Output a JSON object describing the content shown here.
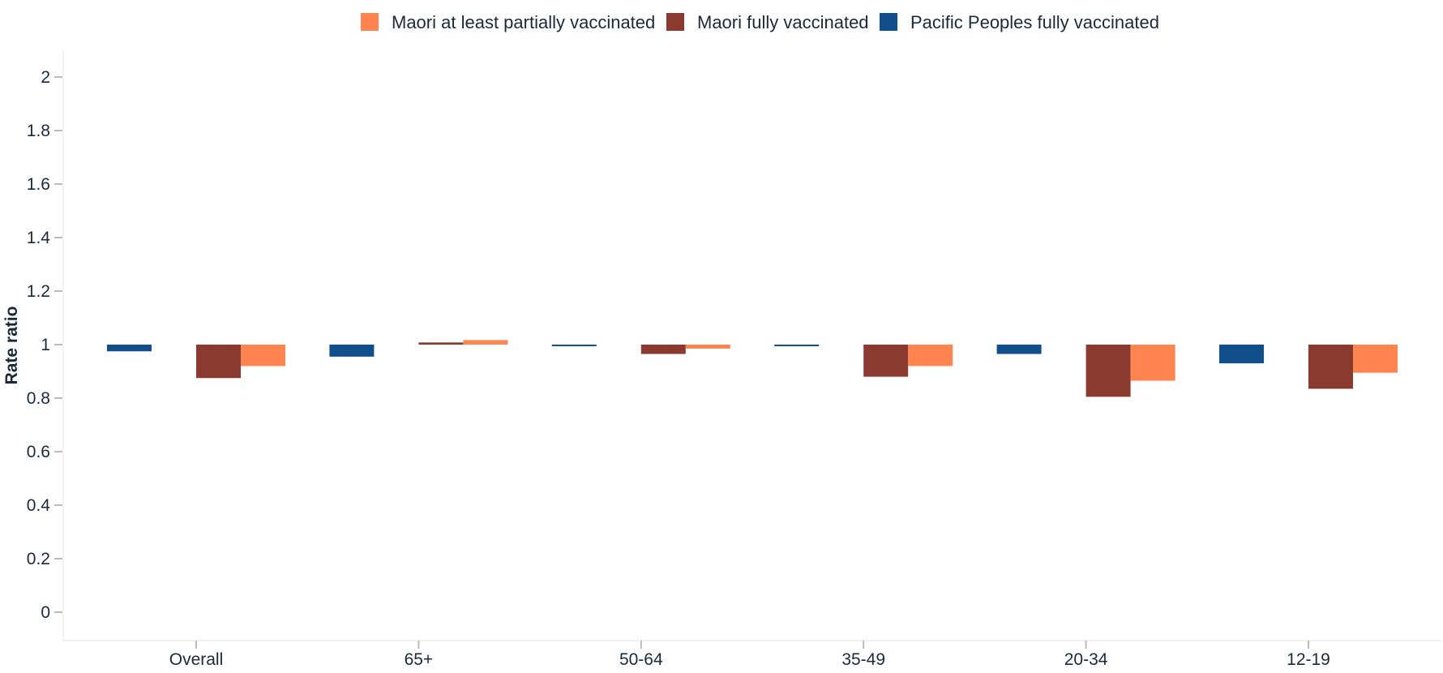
{
  "chart_data": {
    "type": "bar",
    "categories": [
      "Overall",
      "65+",
      "50-64",
      "35-49",
      "20-34",
      "12-19"
    ],
    "baseline": 1,
    "ylabel": "Rate ratio",
    "xlabel": "",
    "ylim": [
      -0.1,
      2.1
    ],
    "yticks": [
      0,
      0.2,
      0.4,
      0.6,
      0.8,
      1,
      1.2,
      1.4,
      1.6,
      1.8,
      2
    ],
    "ytick_labels": [
      "0",
      "0.2",
      "0.4",
      "0.6",
      "0.8",
      "1",
      "1.2",
      "1.4",
      "1.6",
      "1.8",
      "2"
    ],
    "legend_position": "top-center",
    "grid": false,
    "series": [
      {
        "name": "Pacific Peoples fully vaccinated",
        "color": "#114f8c",
        "values": [
          0.975,
          0.955,
          0.995,
          0.995,
          0.965,
          0.93
        ]
      },
      {
        "name": "Maori fully vaccinated",
        "color": "#8b3a30",
        "values": [
          0.875,
          1.008,
          0.965,
          0.88,
          0.805,
          0.835
        ]
      },
      {
        "name": "Maori at least partially vaccinated",
        "color": "#ff8450",
        "values": [
          0.92,
          1.017,
          0.985,
          0.92,
          0.865,
          0.895
        ]
      }
    ],
    "legend_order": [
      2,
      1,
      0
    ]
  }
}
